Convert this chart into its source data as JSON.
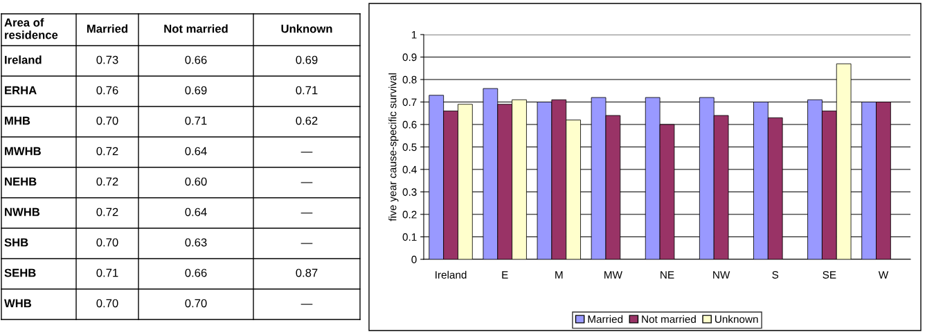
{
  "chart_data": [
    {
      "type": "other",
      "categories": [
        "Area of\nresidence",
        "Married",
        "Not married",
        "Unknown"
      ],
      "y_categories": [
        "Ireland",
        "ERHA",
        "MHB",
        "MWHB",
        "NEHB",
        "NWHB",
        "SHB",
        "SEHB",
        "WHB"
      ],
      "cell_labels": [
        [
          "0.73",
          "0.66",
          "0.69"
        ],
        [
          "0.76",
          "0.69",
          "0.71"
        ],
        [
          "0.70",
          "0.71",
          "0.62"
        ],
        [
          "0.72",
          "0.64",
          "—"
        ],
        [
          "0.72",
          "0.60",
          "—"
        ],
        [
          "0.72",
          "0.64",
          "—"
        ],
        [
          "0.70",
          "0.63",
          "—"
        ],
        [
          "0.71",
          "0.66",
          "0.87"
        ],
        [
          "0.70",
          "0.70",
          "—"
        ]
      ]
    },
    {
      "type": "bar",
      "categories": [
        "Ireland",
        "E",
        "M",
        "MW",
        "NE",
        "NW",
        "S",
        "SE",
        "W"
      ],
      "ylabel": "five year cause-specific survival",
      "ylim": [
        0,
        1
      ],
      "yticks": [
        0,
        0.1,
        0.2,
        0.3,
        0.4,
        0.5,
        0.6,
        0.7,
        0.8,
        0.9,
        1
      ],
      "grid": "y",
      "legend": "bottom",
      "series": [
        {
          "name": "Married",
          "color": "#9999ff",
          "values": [
            0.73,
            0.76,
            0.7,
            0.72,
            0.72,
            0.72,
            0.7,
            0.71,
            0.7
          ]
        },
        {
          "name": "Not married",
          "color": "#993366",
          "values": [
            0.66,
            0.69,
            0.71,
            0.64,
            0.6,
            0.64,
            0.63,
            0.66,
            0.7
          ]
        },
        {
          "name": "Unknown",
          "color": "#ffffcc",
          "values": [
            0.69,
            0.71,
            0.62,
            null,
            null,
            null,
            null,
            0.87,
            null
          ]
        }
      ]
    }
  ]
}
